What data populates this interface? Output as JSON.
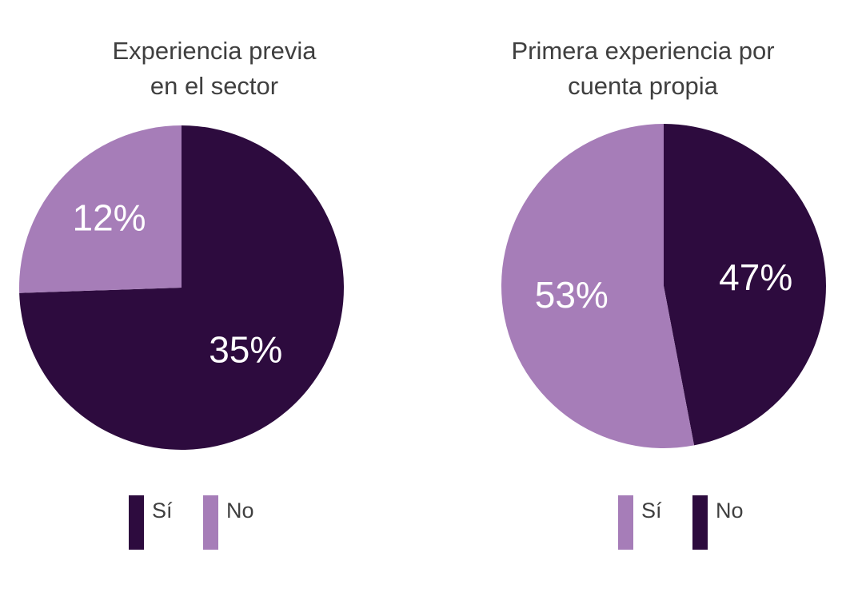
{
  "colors": {
    "dark": "#2d0b3e",
    "light": "#a67db8",
    "text": "#3f3f3f",
    "label": "#ffffff"
  },
  "chart_data": [
    {
      "type": "pie",
      "title": [
        "Experiencia previa",
        "en el sector"
      ],
      "slices": [
        {
          "label": "Sí",
          "value": 35,
          "display": "35%",
          "color": "#2d0b3e"
        },
        {
          "label": "No",
          "value": 12,
          "display": "12%",
          "color": "#a67db8"
        }
      ],
      "legend": [
        {
          "label": "Sí",
          "color": "#2d0b3e"
        },
        {
          "label": "No",
          "color": "#a67db8"
        }
      ],
      "legend_position": "bottom"
    },
    {
      "type": "pie",
      "title": [
        "Primera experiencia por",
        "cuenta propia"
      ],
      "slices": [
        {
          "label": "No",
          "value": 47,
          "display": "47%",
          "color": "#2d0b3e"
        },
        {
          "label": "Sí",
          "value": 53,
          "display": "53%",
          "color": "#a67db8"
        }
      ],
      "legend": [
        {
          "label": "Sí",
          "color": "#a67db8"
        },
        {
          "label": "No",
          "color": "#2d0b3e"
        }
      ],
      "legend_position": "bottom"
    }
  ]
}
